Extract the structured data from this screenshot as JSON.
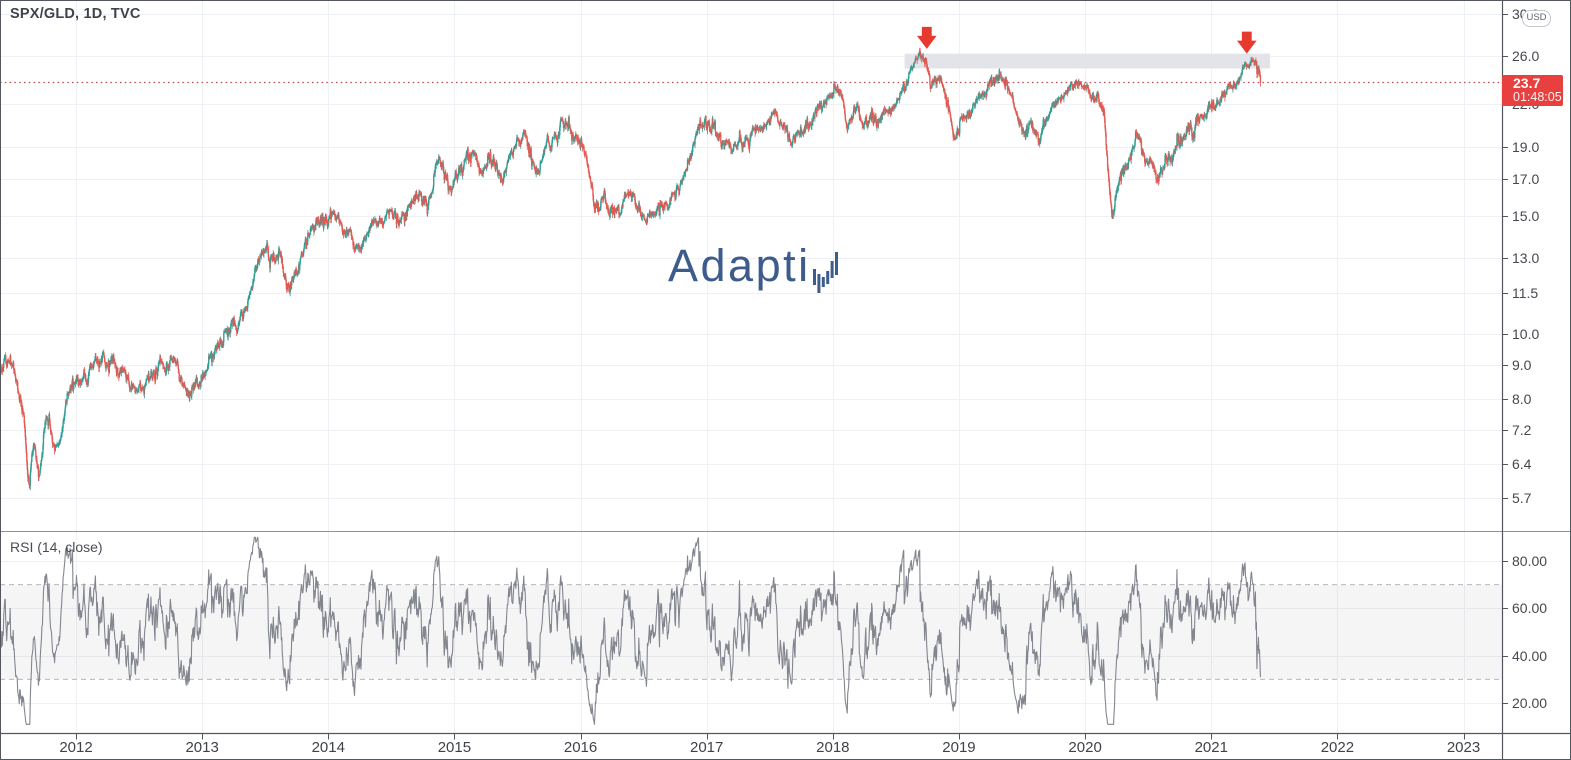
{
  "header": {
    "symbol_title": "SPX/GLD, 1D, TVC"
  },
  "watermark": {
    "text": "Adaptiv"
  },
  "currency_button": {
    "label": "USD"
  },
  "price_axis": {
    "ticks": [
      {
        "label": "30.0",
        "value": 30.0
      },
      {
        "label": "26.0",
        "value": 26.0
      },
      {
        "label": "22.0",
        "value": 22.0
      },
      {
        "label": "19.0",
        "value": 19.0
      },
      {
        "label": "17.0",
        "value": 17.0
      },
      {
        "label": "15.0",
        "value": 15.0
      },
      {
        "label": "13.0",
        "value": 13.0
      },
      {
        "label": "11.5",
        "value": 11.5
      },
      {
        "label": "10.0",
        "value": 10.0
      },
      {
        "label": "9.0",
        "value": 9.0
      },
      {
        "label": "8.0",
        "value": 8.0
      },
      {
        "label": "7.2",
        "value": 7.2
      },
      {
        "label": "6.4",
        "value": 6.4
      },
      {
        "label": "5.7",
        "value": 5.7
      }
    ],
    "current": {
      "label": "23.7",
      "countdown": "01:48:05",
      "value": 23.7
    }
  },
  "time_axis": {
    "years": [
      2012,
      2013,
      2014,
      2015,
      2016,
      2017,
      2018,
      2019,
      2020,
      2021,
      2022,
      2023
    ]
  },
  "rsi_pane": {
    "label": "RSI (14, close)",
    "ticks": [
      {
        "label": "80.00",
        "value": 80
      },
      {
        "label": "60.00",
        "value": 60
      },
      {
        "label": "40.00",
        "value": 40
      },
      {
        "label": "20.00",
        "value": 20
      }
    ],
    "overbought": 70,
    "oversold": 30
  },
  "chart_data": {
    "type": "candlestick",
    "symbol": "SPX/GLD",
    "interval": "1D",
    "exchange": "TVC",
    "price_scale": "log",
    "visible_time_range": [
      2011.4,
      2023.3
    ],
    "visible_price_range": [
      5.09,
      31.45
    ],
    "current_price": 23.7,
    "price_line_value": 23.7,
    "bars_per_year": 252,
    "price_anchors": [
      [
        2011.28,
        9.3
      ],
      [
        2011.4,
        8.85
      ],
      [
        2011.47,
        9.15
      ],
      [
        2011.53,
        8.5
      ],
      [
        2011.59,
        7.4
      ],
      [
        2011.63,
        5.95
      ],
      [
        2011.67,
        6.85
      ],
      [
        2011.71,
        6.15
      ],
      [
        2011.77,
        7.5
      ],
      [
        2011.83,
        6.72
      ],
      [
        2011.91,
        7.65
      ],
      [
        2012.0,
        8.5
      ],
      [
        2012.13,
        8.95
      ],
      [
        2012.22,
        9.3
      ],
      [
        2012.34,
        8.65
      ],
      [
        2012.46,
        8.35
      ],
      [
        2012.57,
        8.6
      ],
      [
        2012.65,
        8.95
      ],
      [
        2012.74,
        9.0
      ],
      [
        2012.83,
        8.6
      ],
      [
        2012.93,
        8.3
      ],
      [
        2013.0,
        8.65
      ],
      [
        2013.08,
        9.25
      ],
      [
        2013.16,
        9.7
      ],
      [
        2013.27,
        10.2
      ],
      [
        2013.37,
        11.35
      ],
      [
        2013.49,
        13.3
      ],
      [
        2013.56,
        12.9
      ],
      [
        2013.62,
        13.2
      ],
      [
        2013.67,
        11.7
      ],
      [
        2013.79,
        13.2
      ],
      [
        2013.93,
        14.6
      ],
      [
        2014.02,
        14.9
      ],
      [
        2014.12,
        14.2
      ],
      [
        2014.22,
        13.5
      ],
      [
        2014.35,
        14.6
      ],
      [
        2014.5,
        15.3
      ],
      [
        2014.58,
        15.0
      ],
      [
        2014.65,
        15.6
      ],
      [
        2014.72,
        16.3
      ],
      [
        2014.78,
        15.4
      ],
      [
        2014.88,
        18.2
      ],
      [
        2014.95,
        16.4
      ],
      [
        2015.05,
        17.6
      ],
      [
        2015.12,
        18.4
      ],
      [
        2015.2,
        17.6
      ],
      [
        2015.3,
        18.0
      ],
      [
        2015.4,
        17.3
      ],
      [
        2015.55,
        20.1
      ],
      [
        2015.64,
        17.5
      ],
      [
        2015.72,
        19.0
      ],
      [
        2015.8,
        19.8
      ],
      [
        2015.89,
        20.6
      ],
      [
        2015.97,
        19.4
      ],
      [
        2016.02,
        19.0
      ],
      [
        2016.11,
        15.3
      ],
      [
        2016.18,
        15.9
      ],
      [
        2016.28,
        15.2
      ],
      [
        2016.36,
        16.1
      ],
      [
        2016.45,
        15.4
      ],
      [
        2016.55,
        15.05
      ],
      [
        2016.63,
        15.6
      ],
      [
        2016.74,
        16.2
      ],
      [
        2016.82,
        17.2
      ],
      [
        2016.88,
        18.5
      ],
      [
        2016.99,
        21.0
      ],
      [
        2017.1,
        19.8
      ],
      [
        2017.22,
        19.2
      ],
      [
        2017.3,
        19.3
      ],
      [
        2017.4,
        20.4
      ],
      [
        2017.52,
        21.2
      ],
      [
        2017.6,
        20.3
      ],
      [
        2017.68,
        19.3
      ],
      [
        2017.76,
        19.9
      ],
      [
        2017.85,
        21.0
      ],
      [
        2017.95,
        22.3
      ],
      [
        2018.02,
        23.2
      ],
      [
        2018.06,
        23.0
      ],
      [
        2018.11,
        20.3
      ],
      [
        2018.17,
        21.8
      ],
      [
        2018.25,
        20.6
      ],
      [
        2018.3,
        21.3
      ],
      [
        2018.35,
        20.5
      ],
      [
        2018.45,
        21.6
      ],
      [
        2018.55,
        23.2
      ],
      [
        2018.63,
        24.8
      ],
      [
        2018.7,
        26.0
      ],
      [
        2018.74,
        25.5
      ],
      [
        2018.77,
        23.6
      ],
      [
        2018.83,
        24.0
      ],
      [
        2018.88,
        23.2
      ],
      [
        2018.93,
        21.3
      ],
      [
        2018.97,
        19.5
      ],
      [
        2019.05,
        21.0
      ],
      [
        2019.12,
        21.8
      ],
      [
        2019.2,
        22.8
      ],
      [
        2019.28,
        23.9
      ],
      [
        2019.33,
        24.3
      ],
      [
        2019.4,
        22.9
      ],
      [
        2019.47,
        20.8
      ],
      [
        2019.55,
        20.2
      ],
      [
        2019.62,
        19.8
      ],
      [
        2019.7,
        20.8
      ],
      [
        2019.8,
        22.4
      ],
      [
        2019.9,
        23.3
      ],
      [
        2019.97,
        23.4
      ],
      [
        2020.05,
        22.6
      ],
      [
        2020.1,
        22.9
      ],
      [
        2020.15,
        21.5
      ],
      [
        2020.21,
        15.15
      ],
      [
        2020.28,
        17.4
      ],
      [
        2020.35,
        18.3
      ],
      [
        2020.4,
        19.9
      ],
      [
        2020.47,
        18.2
      ],
      [
        2020.57,
        16.9
      ],
      [
        2020.65,
        18.0
      ],
      [
        2020.72,
        19.1
      ],
      [
        2020.8,
        19.9
      ],
      [
        2020.87,
        20.3
      ],
      [
        2020.94,
        21.0
      ],
      [
        2021.0,
        21.9
      ],
      [
        2021.08,
        22.6
      ],
      [
        2021.16,
        23.5
      ],
      [
        2021.24,
        24.4
      ],
      [
        2021.3,
        25.0
      ],
      [
        2021.35,
        25.45
      ],
      [
        2021.37,
        24.8
      ],
      [
        2021.39,
        23.7
      ]
    ],
    "markers": [
      {
        "type": "arrow-down",
        "time": 2018.745,
        "tip_price": 26.6
      },
      {
        "type": "arrow-down",
        "time": 2021.282,
        "tip_price": 26.17
      }
    ],
    "resistance_zone": {
      "time_start": 2018.569,
      "time_end": 2021.466,
      "price_low": 24.87,
      "price_high": 26.17
    },
    "rsi": {
      "period": 14,
      "source": "close",
      "overbought": 70,
      "oversold": 30
    },
    "colors": {
      "up": "#2f9e94",
      "down": "#e25a54",
      "price_line": "#c24a52",
      "price_label_bg": "#e8403e",
      "marker": "#e8392e",
      "zone_fill": "#e2e4ea",
      "rsi_line": "#83868f",
      "rsi_band_fill": "rgba(120,124,136,0.075)",
      "rsi_band_border": "#b5b7bd",
      "grid": "#eff1f4",
      "border_dark": "#53565d",
      "separator": "#8f929b",
      "watermark": "#3d5c8d"
    }
  }
}
